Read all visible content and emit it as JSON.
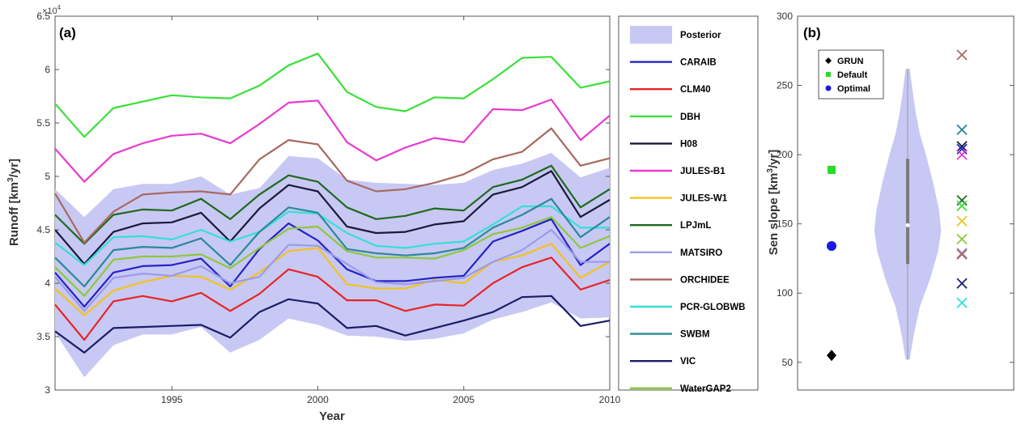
{
  "chart_data": [
    {
      "panel": "(a)",
      "type": "line",
      "xlabel": "Year",
      "ylabel": "Runoff [km^3/yr]",
      "y_exponent_label": "×10^4",
      "xlim": [
        1991,
        2010
      ],
      "ylim": [
        30000,
        65000
      ],
      "x_ticks": [
        1995,
        2000,
        2005,
        2010
      ],
      "y_ticks": [
        30000,
        35000,
        40000,
        45000,
        50000,
        55000,
        60000,
        65000
      ],
      "y_tick_labels": [
        "3",
        "3.5",
        "4",
        "4.5",
        "5",
        "5.5",
        "6",
        "6.5"
      ],
      "grid": false,
      "legend_position": "right-outside",
      "x": [
        1991,
        1992,
        1993,
        1994,
        1995,
        1996,
        1997,
        1998,
        1999,
        2000,
        2001,
        2002,
        2003,
        2004,
        2005,
        2006,
        2007,
        2008,
        2009,
        2010
      ],
      "band": {
        "name": "Posterior",
        "color": "#c8c8f4",
        "upper": [
          48800,
          46200,
          48800,
          49300,
          49300,
          50000,
          48300,
          48900,
          51900,
          51700,
          49700,
          49400,
          49300,
          49200,
          49400,
          50600,
          51200,
          52200,
          49900,
          50800
        ],
        "lower": [
          35400,
          31200,
          34200,
          35200,
          35200,
          35900,
          33500,
          34700,
          36700,
          36100,
          35100,
          35000,
          34600,
          34800,
          35300,
          36600,
          37300,
          38200,
          36700,
          36800
        ]
      },
      "series": [
        {
          "name": "CARAIB",
          "color": "#2323c8",
          "values": [
            41000,
            37800,
            41000,
            41600,
            41700,
            42300,
            39700,
            43200,
            45600,
            44000,
            41300,
            40200,
            40200,
            40500,
            40700,
            43900,
            44900,
            46000,
            41700,
            43700
          ]
        },
        {
          "name": "CLM40",
          "color": "#e82424",
          "values": [
            38000,
            34700,
            38300,
            38800,
            38300,
            39100,
            37400,
            39000,
            41300,
            40600,
            38400,
            38400,
            37400,
            38000,
            37900,
            40000,
            41500,
            42400,
            39400,
            40300
          ]
        },
        {
          "name": "DBH",
          "color": "#3ae03a",
          "values": [
            56800,
            53700,
            56400,
            57000,
            57600,
            57400,
            57300,
            58500,
            60400,
            61500,
            57900,
            56500,
            56100,
            57400,
            57300,
            59100,
            61100,
            61200,
            58300,
            58900
          ]
        },
        {
          "name": "H08",
          "color": "#1a1a3a",
          "values": [
            45000,
            41800,
            44800,
            45600,
            45700,
            46600,
            43900,
            47000,
            49200,
            48600,
            45300,
            44700,
            44800,
            45500,
            45800,
            48300,
            49000,
            50500,
            46200,
            47800
          ]
        },
        {
          "name": "JULES-B1",
          "color": "#e83ad0",
          "values": [
            52600,
            49500,
            52100,
            53100,
            53800,
            54000,
            53100,
            54900,
            56900,
            57100,
            53200,
            51500,
            52700,
            53600,
            53200,
            56300,
            56200,
            57200,
            53400,
            55700
          ]
        },
        {
          "name": "JULES-W1",
          "color": "#f2c21e",
          "values": [
            39500,
            37000,
            39300,
            40100,
            40700,
            40600,
            39400,
            41000,
            43000,
            43300,
            39900,
            39500,
            39500,
            40300,
            40000,
            42000,
            42600,
            43700,
            40500,
            42000
          ]
        },
        {
          "name": "LPJmL",
          "color": "#1d6b1d",
          "values": [
            46400,
            43700,
            46400,
            46900,
            46800,
            47900,
            46000,
            48300,
            50100,
            49500,
            47100,
            46000,
            46300,
            47000,
            46800,
            49000,
            49700,
            51000,
            47100,
            48800
          ]
        },
        {
          "name": "MATSIRO",
          "color": "#9b9be8",
          "values": [
            40600,
            37400,
            40500,
            40900,
            40700,
            41600,
            40000,
            40600,
            43600,
            43500,
            41800,
            40100,
            39900,
            40200,
            40500,
            42000,
            43100,
            45000,
            42000,
            42000
          ]
        },
        {
          "name": "ORCHIDEE",
          "color": "#a86a60",
          "values": [
            48400,
            43800,
            46700,
            48300,
            48500,
            48600,
            48300,
            51600,
            53400,
            53000,
            49600,
            48600,
            48800,
            49400,
            50200,
            51600,
            52300,
            54500,
            51000,
            51700
          ]
        },
        {
          "name": "PCR-GLOBWB",
          "color": "#33e0d8",
          "values": [
            43800,
            41700,
            44300,
            44400,
            44100,
            45000,
            43900,
            44800,
            46700,
            46500,
            44700,
            43500,
            43300,
            43700,
            43900,
            45500,
            47200,
            47200,
            45200,
            45200
          ]
        },
        {
          "name": "SWBM",
          "color": "#2a8a9a",
          "values": [
            42400,
            39700,
            43100,
            43400,
            43300,
            44200,
            41700,
            44800,
            47100,
            46600,
            43200,
            42800,
            42600,
            42800,
            43300,
            45200,
            46400,
            47900,
            44300,
            46200
          ]
        },
        {
          "name": "VIC",
          "color": "#1c1c6a",
          "values": [
            35500,
            33500,
            35800,
            35900,
            36000,
            36100,
            34900,
            37300,
            38500,
            38100,
            35800,
            36000,
            35100,
            35800,
            36500,
            37300,
            38700,
            38800,
            36000,
            36500
          ]
        },
        {
          "name": "WaterGAP2",
          "color": "#8cc83c",
          "values": [
            41500,
            38800,
            42200,
            42500,
            42500,
            42700,
            41400,
            43300,
            45100,
            45300,
            43000,
            42400,
            42400,
            42300,
            43100,
            44600,
            45200,
            46200,
            43300,
            44400
          ]
        }
      ]
    },
    {
      "panel": "(b)",
      "type": "scatter",
      "ylabel": "Sen slope [km^3/yr]",
      "ylim": [
        30,
        300
      ],
      "y_ticks": [
        50,
        100,
        150,
        200,
        250,
        300
      ],
      "grid": false,
      "legend_position": "top-left",
      "legend": [
        {
          "name": "GRUN",
          "color": "#000000",
          "marker": "diamond"
        },
        {
          "name": "Default",
          "color": "#22e022",
          "marker": "square"
        },
        {
          "name": "Optimal",
          "color": "#1a1ae0",
          "marker": "circle"
        }
      ],
      "points": [
        {
          "name": "GRUN",
          "value": 55,
          "color": "#000000",
          "marker": "diamond"
        },
        {
          "name": "Default",
          "value": 189,
          "color": "#22e022",
          "marker": "square"
        },
        {
          "name": "Optimal",
          "value": 134,
          "color": "#1a1ae0",
          "marker": "circle"
        }
      ],
      "violin": {
        "color": "#c8c8f4",
        "min": 52,
        "max": 262,
        "median": 149,
        "q1": 121,
        "q3": 197,
        "profile": [
          [
            52,
            0.02
          ],
          [
            70,
            0.06
          ],
          [
            90,
            0.12
          ],
          [
            110,
            0.22
          ],
          [
            130,
            0.3
          ],
          [
            145,
            0.33
          ],
          [
            160,
            0.31
          ],
          [
            180,
            0.25
          ],
          [
            200,
            0.18
          ],
          [
            215,
            0.12
          ],
          [
            230,
            0.08
          ],
          [
            245,
            0.05
          ],
          [
            262,
            0.02
          ]
        ]
      },
      "model_crosses": [
        {
          "color": "#a86a60",
          "value": 272
        },
        {
          "color": "#2a8a9a",
          "value": 218
        },
        {
          "color": "#1a1a3a",
          "value": 206
        },
        {
          "color": "#2323c8",
          "value": 204
        },
        {
          "color": "#e83ad0",
          "value": 200
        },
        {
          "color": "#1d6b1d",
          "value": 167
        },
        {
          "color": "#3ae03a",
          "value": 163
        },
        {
          "color": "#f2c21e",
          "value": 152
        },
        {
          "color": "#8cc83c",
          "value": 139
        },
        {
          "color": "#9b9be8",
          "value": 129
        },
        {
          "color": "#a86a60",
          "value": 128
        },
        {
          "color": "#1c1c6a",
          "value": 107
        },
        {
          "color": "#33e0d8",
          "value": 93
        }
      ]
    }
  ]
}
